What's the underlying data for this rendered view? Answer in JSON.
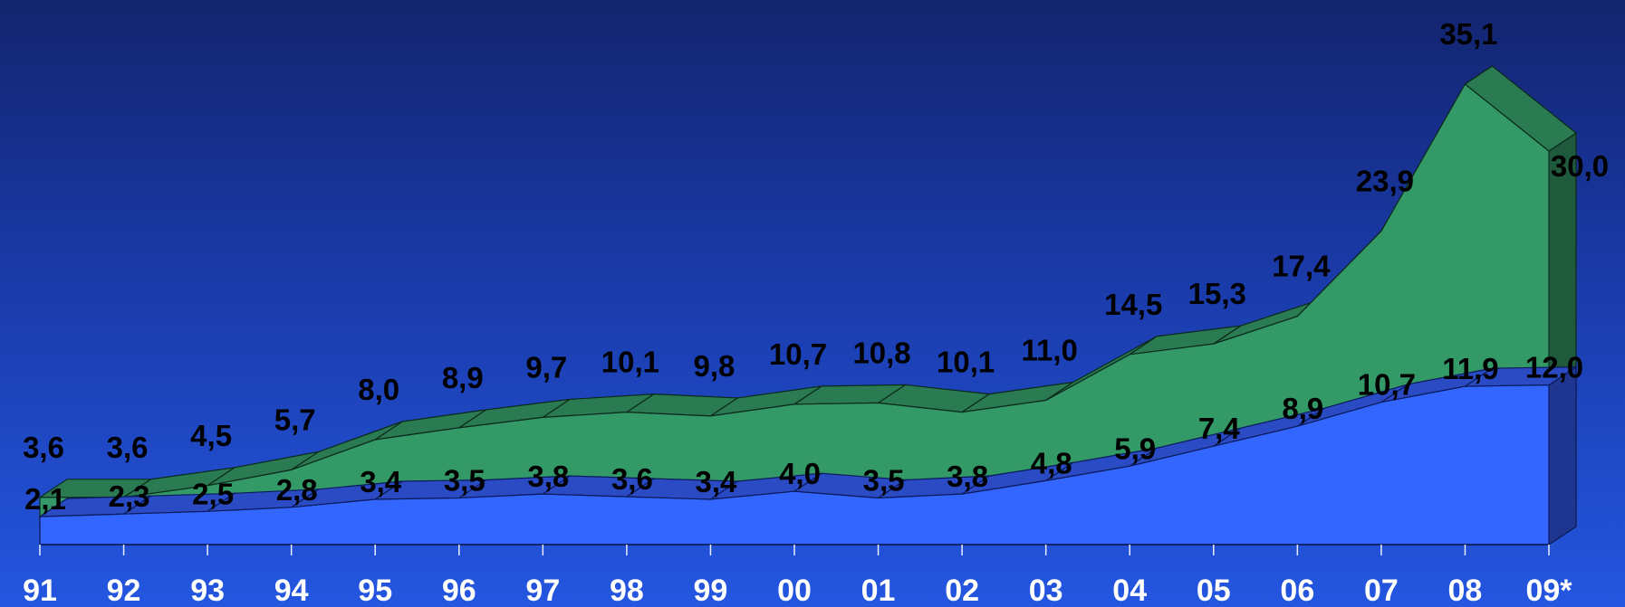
{
  "chart_data": {
    "type": "area",
    "categories": [
      "91",
      "92",
      "93",
      "94",
      "95",
      "96",
      "97",
      "98",
      "99",
      "00",
      "01",
      "02",
      "03",
      "04",
      "05",
      "06",
      "07",
      "08",
      "09*"
    ],
    "series": [
      {
        "values": [
          2.1,
          2.3,
          2.5,
          2.8,
          3.4,
          3.5,
          3.8,
          3.6,
          3.4,
          4.0,
          3.5,
          3.8,
          4.8,
          5.9,
          7.4,
          8.9,
          10.7,
          11.9,
          12.0
        ],
        "labels": [
          "2,1",
          "2,3",
          "2,5",
          "2,8",
          "3,4",
          "3,5",
          "3,8",
          "3,6",
          "3,4",
          "4,0",
          "3,5",
          "3,8",
          "4,8",
          "5,9",
          "7,4",
          "8,9",
          "10,7",
          "11,9",
          "12,0"
        ],
        "color": "#3366ff"
      },
      {
        "values": [
          3.6,
          3.6,
          4.5,
          5.7,
          8.0,
          8.9,
          9.7,
          10.1,
          9.8,
          10.7,
          10.8,
          10.1,
          11.0,
          14.5,
          15.3,
          17.4,
          23.9,
          35.1,
          30.0
        ],
        "labels": [
          "3,6",
          "3,6",
          "4,5",
          "5,7",
          "8,0",
          "8,9",
          "9,7",
          "10,1",
          "9,8",
          "10,7",
          "10,8",
          "10,1",
          "11,0",
          "14,5",
          "15,3",
          "17,4",
          "23,9",
          "35,1",
          "30,0"
        ],
        "color": "#339966"
      }
    ],
    "title": "",
    "xlabel": "",
    "ylabel": "",
    "grid": false,
    "legend": "none",
    "style": "3d-stacked-area",
    "colors": {
      "front_area": "#3366ff",
      "front_top": "#2a4bc4",
      "front_side": "#1f3690",
      "back_area": "#339966",
      "back_top": "#2a7a52",
      "back_side": "#1f5a3c",
      "axis_labels": "#ffffff",
      "value_labels": "#000000"
    }
  }
}
